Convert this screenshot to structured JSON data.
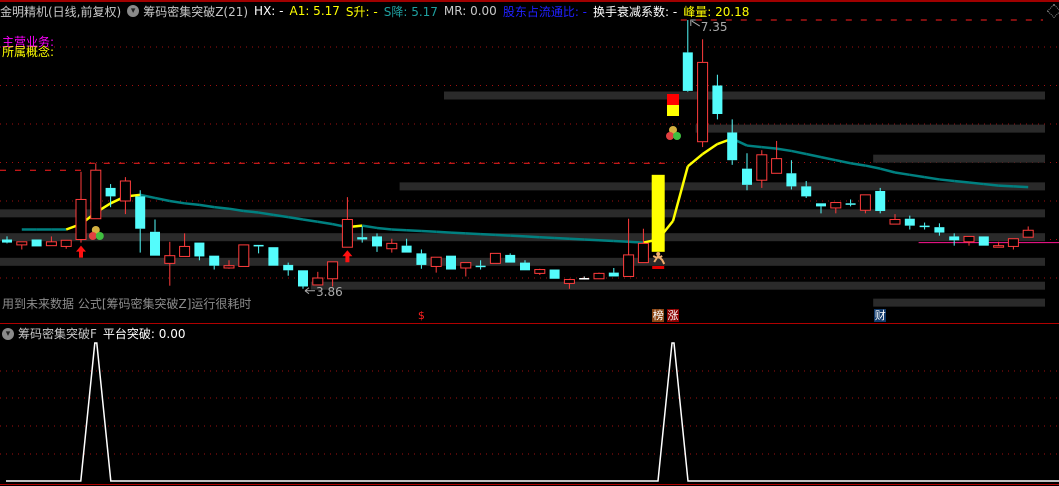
{
  "header": {
    "stock": "金明精机(日线,前复权)",
    "indicator": "筹码密集突破Z(21)",
    "hx": "HX: -",
    "a1": "A1: 5.17",
    "s_up": "S升: -",
    "s_down": "S降: 5.17",
    "mr": "MR: 0.00",
    "holder_ratio": "股东占流通比: -",
    "turnover_decay": "换手衰减系数: -",
    "peak_volume": "峰量: 20.18",
    "main_business": "主营业务:",
    "concept": "所属概念:"
  },
  "colors": {
    "up": "#ff3c3c",
    "down": "#54fcfc",
    "ma_rising": "#ffff00",
    "ma_falling": "#008080",
    "band": "#2a2a2a",
    "grid": "#a01010",
    "header_yellow": "#ffff00",
    "header_teal": "#1fa0a0",
    "header_blue": "#2020ff",
    "magenta": "#ff00ff",
    "pink_line": "#ff1493"
  },
  "note": "用到未来数据 公式[筹码密集突破Z]运行很耗时",
  "sub_panel": {
    "indicator": "筹码密集突破F",
    "value_label": "平台突破: 0.00"
  },
  "chart_data": {
    "type": "candlestick",
    "ylim": [
      3.6,
      7.45
    ],
    "gridlines": [
      4.0,
      4.5,
      5.0,
      5.5,
      6.0,
      6.5,
      7.0
    ],
    "high_label": "7.35",
    "low_label": "3.86",
    "candles_ohlc": [
      [
        4.5,
        4.54,
        4.45,
        4.46
      ],
      [
        4.43,
        4.47,
        4.37,
        4.47
      ],
      [
        4.5,
        4.5,
        4.41,
        4.41
      ],
      [
        4.42,
        4.54,
        4.42,
        4.47
      ],
      [
        4.41,
        4.49,
        4.38,
        4.49
      ],
      [
        4.5,
        5.38,
        4.46,
        5.02
      ],
      [
        4.77,
        5.49,
        4.77,
        5.4
      ],
      [
        5.17,
        5.22,
        4.92,
        5.06
      ],
      [
        5.0,
        5.31,
        4.83,
        5.26
      ],
      [
        5.06,
        5.14,
        4.33,
        4.64
      ],
      [
        4.6,
        4.76,
        4.29,
        4.29
      ],
      [
        4.19,
        4.47,
        3.9,
        4.29
      ],
      [
        4.28,
        4.58,
        4.28,
        4.41
      ],
      [
        4.46,
        4.46,
        4.23,
        4.28
      ],
      [
        4.29,
        4.29,
        4.11,
        4.16
      ],
      [
        4.13,
        4.23,
        4.12,
        4.16
      ],
      [
        4.15,
        4.43,
        4.15,
        4.43
      ],
      [
        4.43,
        4.43,
        4.32,
        4.41
      ],
      [
        4.4,
        4.4,
        4.16,
        4.16
      ],
      [
        4.17,
        4.2,
        4.03,
        4.1
      ],
      [
        4.1,
        4.1,
        3.86,
        3.89
      ],
      [
        3.91,
        4.08,
        3.91,
        4.0
      ],
      [
        3.99,
        4.21,
        3.89,
        4.21
      ],
      [
        4.4,
        5.05,
        4.4,
        4.76
      ],
      [
        4.53,
        4.67,
        4.46,
        4.5
      ],
      [
        4.54,
        4.58,
        4.34,
        4.41
      ],
      [
        4.38,
        4.51,
        4.33,
        4.45
      ],
      [
        4.42,
        4.51,
        4.33,
        4.33
      ],
      [
        4.32,
        4.37,
        4.12,
        4.17
      ],
      [
        4.15,
        4.27,
        4.07,
        4.27
      ],
      [
        4.29,
        4.29,
        4.11,
        4.11
      ],
      [
        4.13,
        4.2,
        4.02,
        4.2
      ],
      [
        4.16,
        4.23,
        4.11,
        4.15
      ],
      [
        4.19,
        4.32,
        4.19,
        4.32
      ],
      [
        4.3,
        4.32,
        4.2,
        4.2
      ],
      [
        4.2,
        4.23,
        4.1,
        4.1
      ],
      [
        4.06,
        4.12,
        4.04,
        4.11
      ],
      [
        4.11,
        4.11,
        3.99,
        3.99
      ],
      [
        3.93,
        3.99,
        3.86,
        3.98
      ],
      [
        4.0,
        4.02,
        3.98,
        4.0
      ],
      [
        3.99,
        4.07,
        3.99,
        4.06
      ],
      [
        4.07,
        4.13,
        4.02,
        4.02
      ],
      [
        4.02,
        4.77,
        4.02,
        4.3
      ],
      [
        4.2,
        4.64,
        4.2,
        4.45
      ],
      [
        4.34,
        5.34,
        4.34,
        5.34
      ],
      null,
      [
        6.93,
        7.35,
        6.42,
        6.43
      ],
      [
        5.77,
        7.1,
        5.7,
        6.8
      ],
      [
        6.5,
        6.64,
        6.06,
        6.13
      ],
      [
        5.89,
        6.06,
        5.47,
        5.53
      ],
      [
        5.42,
        5.62,
        5.14,
        5.21
      ],
      [
        5.27,
        5.66,
        5.17,
        5.6
      ],
      [
        5.36,
        5.78,
        5.36,
        5.55
      ],
      [
        5.36,
        5.53,
        5.15,
        5.19
      ],
      [
        5.19,
        5.26,
        5.04,
        5.06
      ],
      [
        4.97,
        4.97,
        4.84,
        4.93
      ],
      [
        4.91,
        4.98,
        4.84,
        4.98
      ],
      [
        4.97,
        5.02,
        4.93,
        4.96
      ],
      [
        4.88,
        5.08,
        4.84,
        5.08
      ],
      [
        5.13,
        5.17,
        4.84,
        4.87
      ],
      [
        4.7,
        4.83,
        4.7,
        4.76
      ],
      [
        4.77,
        4.81,
        4.63,
        4.68
      ],
      [
        4.68,
        4.72,
        4.63,
        4.67
      ],
      [
        4.66,
        4.71,
        4.55,
        4.59
      ],
      [
        4.54,
        4.58,
        4.42,
        4.49
      ],
      [
        4.47,
        4.54,
        4.42,
        4.54
      ],
      [
        4.54,
        4.54,
        4.42,
        4.42
      ],
      [
        4.4,
        4.47,
        4.4,
        4.42
      ],
      [
        4.41,
        4.51,
        4.37,
        4.51
      ],
      [
        4.53,
        4.67,
        4.53,
        4.62
      ]
    ],
    "highlight_candle": 44,
    "ma": [
      null,
      4.63,
      4.63,
      4.63,
      4.63,
      4.7,
      4.85,
      4.97,
      5.06,
      5.08,
      5.04,
      5.0,
      4.97,
      4.95,
      4.92,
      4.9,
      4.87,
      4.85,
      4.82,
      4.79,
      4.76,
      4.73,
      4.7,
      4.66,
      4.68,
      4.65,
      4.63,
      4.62,
      4.61,
      4.6,
      4.59,
      4.58,
      4.57,
      4.56,
      4.55,
      4.54,
      4.53,
      4.52,
      4.51,
      4.5,
      4.49,
      4.48,
      4.47,
      4.46,
      4.5,
      4.74,
      5.45,
      5.61,
      5.74,
      5.81,
      5.72,
      5.7,
      5.68,
      5.65,
      5.61,
      5.57,
      5.53,
      5.49,
      5.46,
      5.42,
      5.37,
      5.34,
      5.31,
      5.28,
      5.26,
      5.24,
      5.22,
      5.2,
      5.19,
      5.18
    ],
    "chip_bands": [
      {
        "price": 6.37,
        "from_bar": 30
      },
      {
        "price": 5.94,
        "from_bar": 47
      },
      {
        "price": 5.55,
        "from_bar": 59
      },
      {
        "price": 5.19,
        "from_bar": 27
      },
      {
        "price": 4.84,
        "from_bar": 0
      },
      {
        "price": 4.53,
        "from_bar": 0
      },
      {
        "price": 4.21,
        "from_bar": 0
      },
      {
        "price": 3.9,
        "from_bar": 21
      },
      {
        "price": 3.68,
        "from_bar": 59
      }
    ],
    "dashed_levels": [
      {
        "price": 7.35,
        "from_bar": 46,
        "to_bar": 70
      },
      {
        "price": 5.49,
        "from_bar": 6,
        "to_bar": 45
      },
      {
        "price": 5.4,
        "from_bar": 0,
        "to_bar": 5
      }
    ],
    "pink_level": {
      "price": 4.46,
      "from_bar": 62
    },
    "signals": {
      "up_arrows": [
        5,
        23
      ],
      "balls": [
        6,
        45
      ],
      "block": 45,
      "runner": 44
    },
    "bottom_marks": [
      {
        "bar": 28,
        "text": "$",
        "bg": "#000000",
        "fg": "#ff2020"
      },
      {
        "bar": 44,
        "text": "榜",
        "bg": "#8b4513",
        "fg": "#ffffff"
      },
      {
        "bar": 45,
        "text": "涨",
        "bg": "#8b0000",
        "fg": "#ffffff"
      },
      {
        "bar": 59,
        "text": "财",
        "bg": "#123a6a",
        "fg": "#ffffff"
      }
    ],
    "platform_breakout": {
      "ylim": [
        0,
        1
      ],
      "events": [
        6,
        45
      ]
    }
  }
}
